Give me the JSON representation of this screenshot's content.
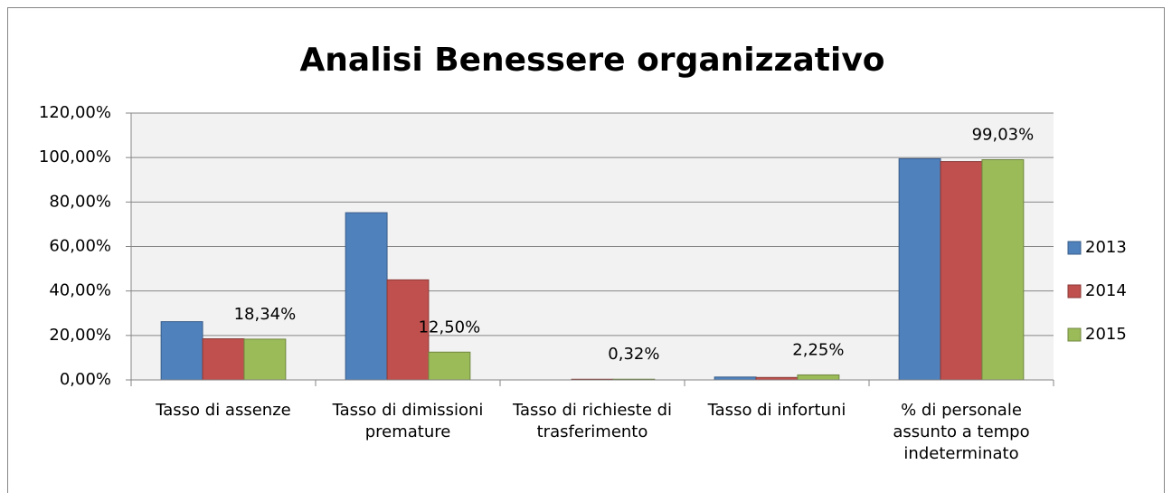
{
  "chart_data": {
    "type": "bar",
    "title": "Analisi Benessere organizzativo",
    "categories": [
      "Tasso di assenze",
      "Tasso di dimissioni premature",
      "Tasso di richieste di trasferimento",
      "Tasso di infortuni",
      "% di personale assunto a tempo indeterminato"
    ],
    "series": [
      {
        "name": "2013",
        "color": "#4f81bd",
        "values": [
          26.2,
          75.2,
          0,
          1.3,
          99.5
        ]
      },
      {
        "name": "2014",
        "color": "#c0504d",
        "values": [
          18.5,
          45,
          0.3,
          1.1,
          98.2
        ]
      },
      {
        "name": "2015",
        "color": "#9bbb59",
        "values": [
          18.34,
          12.5,
          0.32,
          2.25,
          99.03
        ],
        "value_labels": [
          "18,34%",
          "12,50%",
          "0,32%",
          "2,25%",
          "99,03%"
        ]
      }
    ],
    "ylim": [
      0,
      120
    ],
    "yticks": [
      {
        "value": 0,
        "label": "0,00%"
      },
      {
        "value": 20,
        "label": "20,00%"
      },
      {
        "value": 40,
        "label": "40,00%"
      },
      {
        "value": 60,
        "label": "60,00%"
      },
      {
        "value": 80,
        "label": "80,00%"
      },
      {
        "value": 100,
        "label": "100,00%"
      },
      {
        "value": 120,
        "label": "120,00%"
      }
    ],
    "grid": true,
    "legend": "right"
  }
}
